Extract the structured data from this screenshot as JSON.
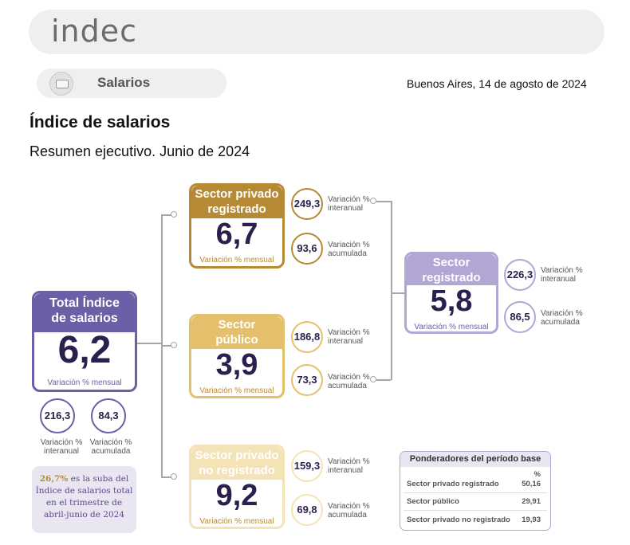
{
  "header": {
    "logo_text": "indec",
    "section_label": "Salarios",
    "date": "Buenos Aires, 14 de agosto de 2024"
  },
  "title": "Índice de salarios",
  "subtitle": "Resumen ejecutivo. Junio de 2024",
  "colors": {
    "total": "#6c5fa7",
    "privado_registrado": "#b68a34",
    "publico": "#e4c06d",
    "privado_no_registrado": "#f3e3b6",
    "registrado": "#b1a6d4"
  },
  "total": {
    "title_line1": "Total Índice",
    "title_line2": "de salarios",
    "value": "6,2",
    "caption": "Variación % mensual",
    "interanual": "216,3",
    "interanual_label_1": "Variación %",
    "interanual_label_2": "interanual",
    "acumulada": "84,3",
    "acumulada_label_1": "Variación %",
    "acumulada_label_2": "acumulada"
  },
  "privado_registrado": {
    "title_line1": "Sector privado",
    "title_line2": "registrado",
    "value": "6,7",
    "caption": "Variación % mensual",
    "interanual": "249,3",
    "acumulada": "93,6"
  },
  "publico": {
    "title_line1": "Sector",
    "title_line2": "público",
    "value": "3,9",
    "caption": "Variación % mensual",
    "interanual": "186,8",
    "acumulada": "73,3"
  },
  "privado_no_registrado": {
    "title_line1": "Sector privado",
    "title_line2": "no registrado",
    "value": "9,2",
    "caption": "Variación % mensual",
    "interanual": "159,3",
    "acumulada": "69,8"
  },
  "registrado": {
    "title_line1": "Sector",
    "title_line2": "registrado",
    "value": "5,8",
    "caption": "Variación % mensual",
    "interanual": "226,3",
    "acumulada": "86,5"
  },
  "labels": {
    "var": "Variación %",
    "interanual": "interanual",
    "acumulada": "acumulada"
  },
  "note": {
    "highlight": "26,7%",
    "line1_rest": " es la suba del",
    "line2": "Índice de salarios total",
    "line3": "en el trimestre de",
    "line4": "abril-junio de 2024"
  },
  "ponderadores": {
    "title": "Ponderadores del período base",
    "unit": "%",
    "rows": [
      {
        "label": "Sector privado registrado",
        "value": "50,16"
      },
      {
        "label": "Sector público",
        "value": "29,91"
      },
      {
        "label": "Sector privado no registrado",
        "value": "19,93"
      }
    ]
  }
}
